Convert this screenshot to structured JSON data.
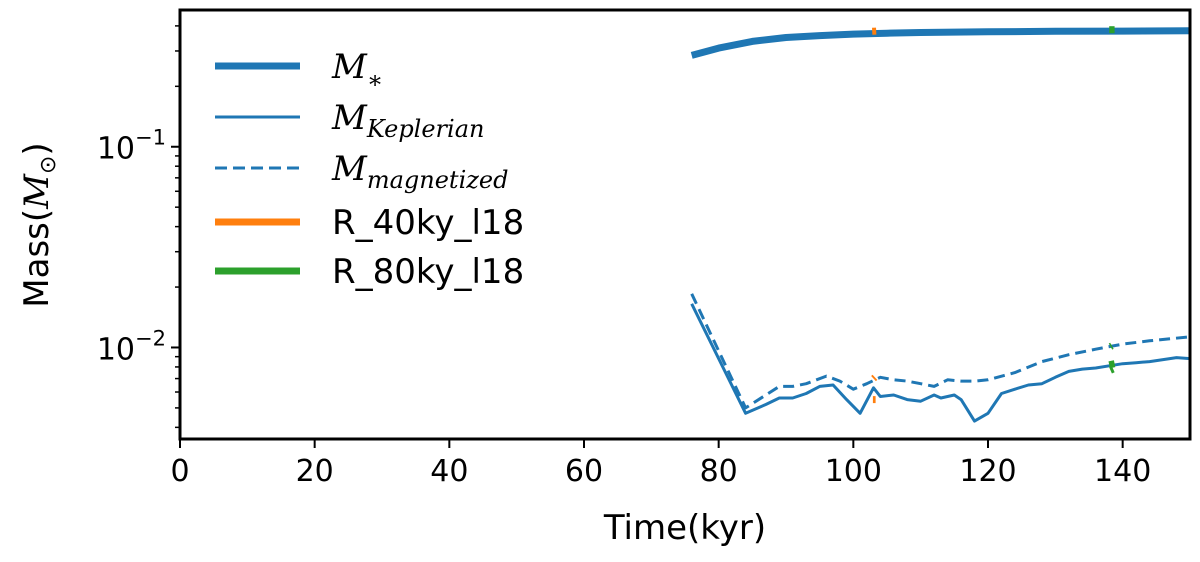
{
  "chart_data": {
    "type": "line",
    "xlabel": "Time(kyr)",
    "ylabel": "Mass(",
    "ylabel_symbol": "M",
    "ylabel_sub": "⊙",
    "ylabel_close": ")",
    "xlim": [
      0,
      150
    ],
    "ylim": [
      0.0035,
      0.48
    ],
    "yscale": "log",
    "xticks": [
      0,
      20,
      40,
      60,
      80,
      100,
      120,
      140
    ],
    "xtick_labels": [
      "0",
      "20",
      "40",
      "60",
      "80",
      "100",
      "120",
      "140"
    ],
    "yticks_major": [
      {
        "value": 0.1,
        "base": "10",
        "exp": "−1"
      },
      {
        "value": 0.01,
        "base": "10",
        "exp": "−2"
      }
    ],
    "legend": {
      "placement": "upper-left",
      "entries": [
        {
          "symbol": "M",
          "sub": "∗",
          "style": "thick"
        },
        {
          "symbol": "M",
          "sub": "Keplerian",
          "style": "thin"
        },
        {
          "symbol": "M",
          "sub": "magnetized",
          "style": "dashed"
        },
        {
          "label": "R_40ky_l18",
          "style": "thick-orange"
        },
        {
          "label": "R_80ky_l18",
          "style": "thick-green"
        }
      ]
    },
    "colors": {
      "blue": "#1f77b4",
      "orange": "#ff7f0e",
      "green": "#2ca02c"
    },
    "series": [
      {
        "name": "M_*",
        "color": "#1f77b4",
        "style": "thick",
        "points": [
          [
            76,
            0.285
          ],
          [
            80,
            0.31
          ],
          [
            85,
            0.335
          ],
          [
            90,
            0.35
          ],
          [
            95,
            0.358
          ],
          [
            100,
            0.364
          ],
          [
            105,
            0.368
          ],
          [
            110,
            0.371
          ],
          [
            120,
            0.374
          ],
          [
            130,
            0.376
          ],
          [
            140,
            0.377
          ],
          [
            150,
            0.378
          ]
        ]
      },
      {
        "name": "M_Keplerian",
        "color": "#1f77b4",
        "style": "solid",
        "points": [
          [
            76,
            0.0165
          ],
          [
            84,
            0.0047
          ],
          [
            87,
            0.0052
          ],
          [
            89,
            0.0056
          ],
          [
            91,
            0.0056
          ],
          [
            93,
            0.0059
          ],
          [
            95,
            0.0064
          ],
          [
            97,
            0.0065
          ],
          [
            99,
            0.0055
          ],
          [
            101,
            0.0047
          ],
          [
            103,
            0.0063
          ],
          [
            104,
            0.0057
          ],
          [
            106,
            0.0058
          ],
          [
            108,
            0.0055
          ],
          [
            110,
            0.0054
          ],
          [
            112,
            0.0058
          ],
          [
            113,
            0.0056
          ],
          [
            115,
            0.0058
          ],
          [
            116,
            0.0055
          ],
          [
            118,
            0.0043
          ],
          [
            120,
            0.0047
          ],
          [
            122,
            0.0059
          ],
          [
            124,
            0.0062
          ],
          [
            126,
            0.0065
          ],
          [
            128,
            0.0066
          ],
          [
            130,
            0.0071
          ],
          [
            132,
            0.0076
          ],
          [
            134,
            0.0078
          ],
          [
            136,
            0.0079
          ],
          [
            138,
            0.0081
          ],
          [
            140,
            0.0083
          ],
          [
            142,
            0.0084
          ],
          [
            144,
            0.0085
          ],
          [
            146,
            0.0087
          ],
          [
            148,
            0.0089
          ],
          [
            150,
            0.0088
          ]
        ]
      },
      {
        "name": "M_magnetized",
        "color": "#1f77b4",
        "style": "dashed",
        "points": [
          [
            76,
            0.0185
          ],
          [
            84,
            0.005
          ],
          [
            87,
            0.0058
          ],
          [
            89,
            0.0064
          ],
          [
            91,
            0.0064
          ],
          [
            93,
            0.0066
          ],
          [
            96,
            0.0072
          ],
          [
            98,
            0.0068
          ],
          [
            100,
            0.0062
          ],
          [
            102,
            0.0066
          ],
          [
            104,
            0.0071
          ],
          [
            106,
            0.0069
          ],
          [
            108,
            0.0068
          ],
          [
            110,
            0.0066
          ],
          [
            112,
            0.0064
          ],
          [
            114,
            0.0069
          ],
          [
            116,
            0.0068
          ],
          [
            118,
            0.0068
          ],
          [
            120,
            0.0069
          ],
          [
            124,
            0.0075
          ],
          [
            128,
            0.0085
          ],
          [
            132,
            0.0092
          ],
          [
            136,
            0.0098
          ],
          [
            140,
            0.0104
          ],
          [
            144,
            0.0108
          ],
          [
            150,
            0.0113
          ]
        ]
      },
      {
        "name": "R_40ky_l18",
        "color": "#ff7f0e",
        "style": "thick",
        "segments": [
          [
            [
              102.8,
              0.376
            ],
            [
              103.4,
              0.377
            ]
          ],
          [
            [
              102.9,
              0.0055
            ],
            [
              103.3,
              0.0055
            ]
          ],
          [
            [
              103.0,
              0.007
            ],
            [
              103.2,
              0.0071
            ]
          ]
        ]
      },
      {
        "name": "R_80ky_l18",
        "color": "#2ca02c",
        "style": "thick",
        "segments": [
          [
            [
              138.0,
              0.383
            ],
            [
              138.8,
              0.383
            ]
          ],
          [
            [
              138.0,
              0.0082
            ],
            [
              138.8,
              0.0083
            ]
          ],
          [
            [
              138.2,
              0.0077
            ],
            [
              138.6,
              0.0078
            ]
          ],
          [
            [
              138.2,
              0.0101
            ],
            [
              138.4,
              0.0102
            ]
          ]
        ]
      }
    ]
  }
}
